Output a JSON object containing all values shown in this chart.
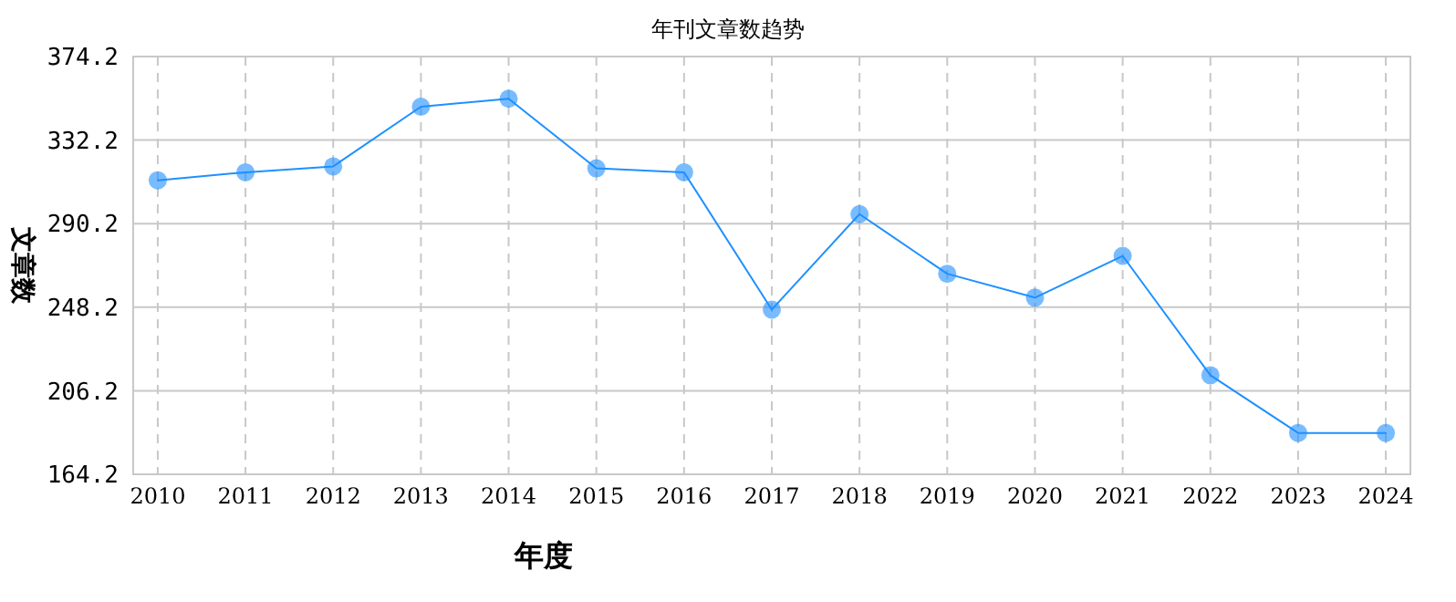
{
  "chart_data": {
    "type": "line",
    "title": "年刊文章数趋势",
    "xlabel": "年度",
    "ylabel": "文章数",
    "categories": [
      "2010",
      "2011",
      "2012",
      "2013",
      "2014",
      "2015",
      "2016",
      "2017",
      "2018",
      "2019",
      "2020",
      "2021",
      "2022",
      "2023",
      "2024"
    ],
    "series": [
      {
        "color": "#1e90ff",
        "values": [
          312,
          316,
          319,
          349,
          353,
          318,
          316,
          247,
          295,
          265,
          253,
          274,
          214,
          185,
          185
        ]
      }
    ],
    "ylim": [
      164.2,
      374.2
    ],
    "yticks": [
      164.2,
      206.2,
      248.2,
      290.2,
      332.2,
      374.2
    ],
    "grid": true,
    "marker": "circle",
    "line_style": "solid"
  }
}
